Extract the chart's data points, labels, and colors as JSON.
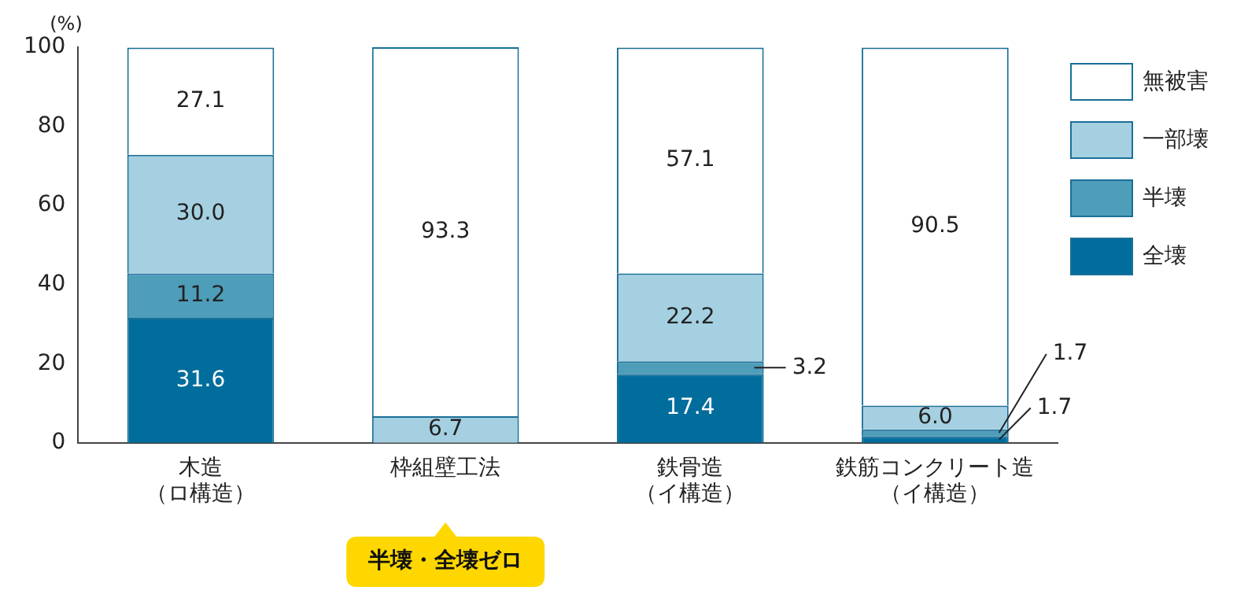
{
  "chart_data": {
    "type": "bar",
    "stacked": true,
    "ylabel": "(%)",
    "categories": [
      "木造（ロ構造）",
      "枠組壁工法",
      "鉄骨造（イ構造）",
      "鉄筋コンクリート造（イ構造）"
    ],
    "series": [
      {
        "name": "全壊",
        "color": "#006d9c",
        "values": [
          31.6,
          0,
          17.4,
          1.7
        ],
        "value_labels": [
          "31.6",
          null,
          "17.4",
          "1.7"
        ]
      },
      {
        "name": "半壊",
        "color": "#4e9db9",
        "values": [
          11.2,
          0,
          3.2,
          1.7
        ],
        "value_labels": [
          "11.2",
          null,
          "3.2",
          "1.7"
        ]
      },
      {
        "name": "一部壊",
        "color": "#a5d0e1",
        "values": [
          30.0,
          6.7,
          22.2,
          6.0
        ],
        "value_labels": [
          "30.0",
          "6.7",
          "22.2",
          "6.0"
        ]
      },
      {
        "name": "無被害",
        "color": "#ffffff",
        "values": [
          27.1,
          93.3,
          57.1,
          90.5
        ],
        "value_labels": [
          "27.1",
          "93.3",
          "57.1",
          "90.5"
        ]
      }
    ],
    "ylim": [
      0,
      100
    ],
    "yticks": [
      0,
      20,
      40,
      60,
      80,
      100
    ],
    "grid": false,
    "legend": "top right",
    "annotations": [
      "半壊・全壊ゼロ"
    ]
  }
}
